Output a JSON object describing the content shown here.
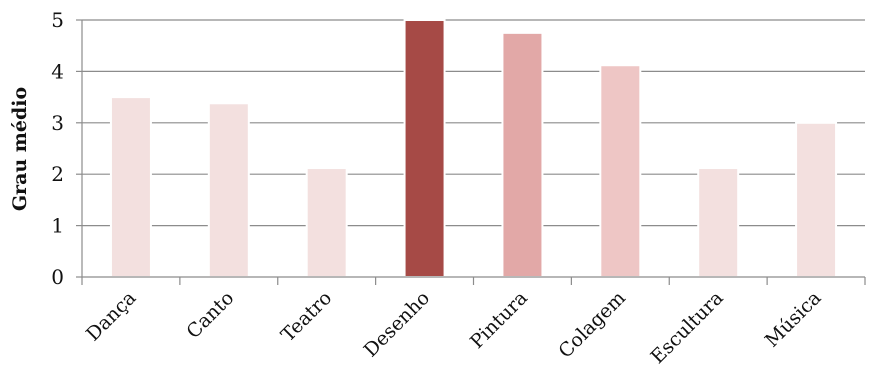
{
  "chart_data": {
    "type": "bar",
    "categories": [
      "Dança",
      "Canto",
      "Teatro",
      "Desenho",
      "Pintura",
      "Colagem",
      "Escultura",
      "Música"
    ],
    "values": [
      3.5,
      3.38,
      2.12,
      5.0,
      4.75,
      4.12,
      2.12,
      3.0
    ],
    "colors": [
      "#f3e0df",
      "#f3e0df",
      "#f3e0df",
      "#a64a46",
      "#e2a8a7",
      "#eec6c5",
      "#f3e0df",
      "#f3e0df"
    ],
    "title": "",
    "xlabel": "",
    "ylabel": "Grau médio",
    "ylim": [
      0,
      5
    ],
    "yticks": [
      "0",
      "1",
      "2",
      "3",
      "4",
      "5"
    ],
    "grid": true,
    "legend": "none"
  }
}
